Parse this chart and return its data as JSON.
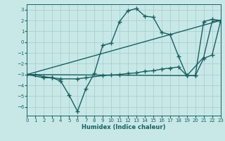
{
  "xlabel": "Humidex (Indice chaleur)",
  "background_color": "#c8e8e8",
  "grid_color": "#a8d0d0",
  "line_color": "#1a6060",
  "xlim": [
    0,
    23
  ],
  "ylim": [
    -6.8,
    3.5
  ],
  "yticks": [
    -6,
    -5,
    -4,
    -3,
    -2,
    -1,
    0,
    1,
    2,
    3
  ],
  "xticks": [
    0,
    1,
    2,
    3,
    4,
    5,
    6,
    7,
    8,
    9,
    10,
    11,
    12,
    13,
    14,
    15,
    16,
    17,
    18,
    19,
    20,
    21,
    22,
    23
  ],
  "series": [
    {
      "x": [
        0,
        1,
        2,
        3,
        4,
        5,
        6,
        7,
        8,
        9,
        10,
        11,
        12,
        13,
        14,
        15,
        16,
        17,
        18,
        19,
        20,
        21,
        22,
        23
      ],
      "y": [
        -3.0,
        -3.0,
        -3.2,
        -3.3,
        -3.6,
        -4.9,
        -6.4,
        -4.3,
        -2.9,
        -0.3,
        -0.1,
        1.9,
        2.9,
        3.1,
        2.4,
        2.3,
        0.9,
        0.7,
        -1.3,
        -3.1,
        -3.1,
        1.9,
        2.1,
        2.0
      ],
      "marker": "+",
      "markersize": 4,
      "linewidth": 1.0
    },
    {
      "x": [
        0,
        2,
        3,
        4,
        6,
        7,
        9,
        10,
        11,
        12,
        13,
        14,
        15,
        16,
        17,
        18,
        19,
        20,
        21,
        22,
        23
      ],
      "y": [
        -3.0,
        -3.3,
        -3.3,
        -3.4,
        -3.4,
        -3.3,
        -3.1,
        -3.05,
        -3.0,
        -2.9,
        -2.85,
        -2.7,
        -2.65,
        -2.5,
        -2.4,
        -2.3,
        -3.1,
        -3.1,
        -1.5,
        -1.2,
        1.9
      ],
      "marker": "+",
      "markersize": 4,
      "linewidth": 1.0
    },
    {
      "x": [
        0,
        23
      ],
      "y": [
        -3.0,
        2.0
      ],
      "marker": null,
      "markersize": 0,
      "linewidth": 1.0
    },
    {
      "x": [
        0,
        19,
        21,
        22,
        23
      ],
      "y": [
        -3.0,
        -3.1,
        -1.4,
        1.9,
        2.0
      ],
      "marker": null,
      "markersize": 0,
      "linewidth": 1.0
    }
  ]
}
